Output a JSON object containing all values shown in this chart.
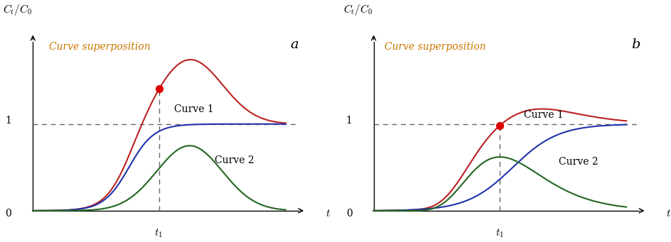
{
  "colors": {
    "curve1": "#2233aa",
    "curve2": "#226622",
    "superposition": "#bb2222",
    "dot": "#dd0000",
    "dashed_line": "#666666",
    "axis": "#000000",
    "label_superposition": "#cc7700",
    "text": "#000000"
  },
  "ylabel": "$C_t/C_0$",
  "xlabel": "$t$",
  "label_superposition": "Curve superposition",
  "label_curve1": "Curve 1",
  "label_curve2": "Curve 2",
  "t1_label": "$t_1$",
  "panel_a_label": "a",
  "panel_b_label": "b",
  "zero_label": "0",
  "one_label": "1",
  "ylim_max": 1.95,
  "xlim_max": 10.5,
  "t1": 5.0
}
